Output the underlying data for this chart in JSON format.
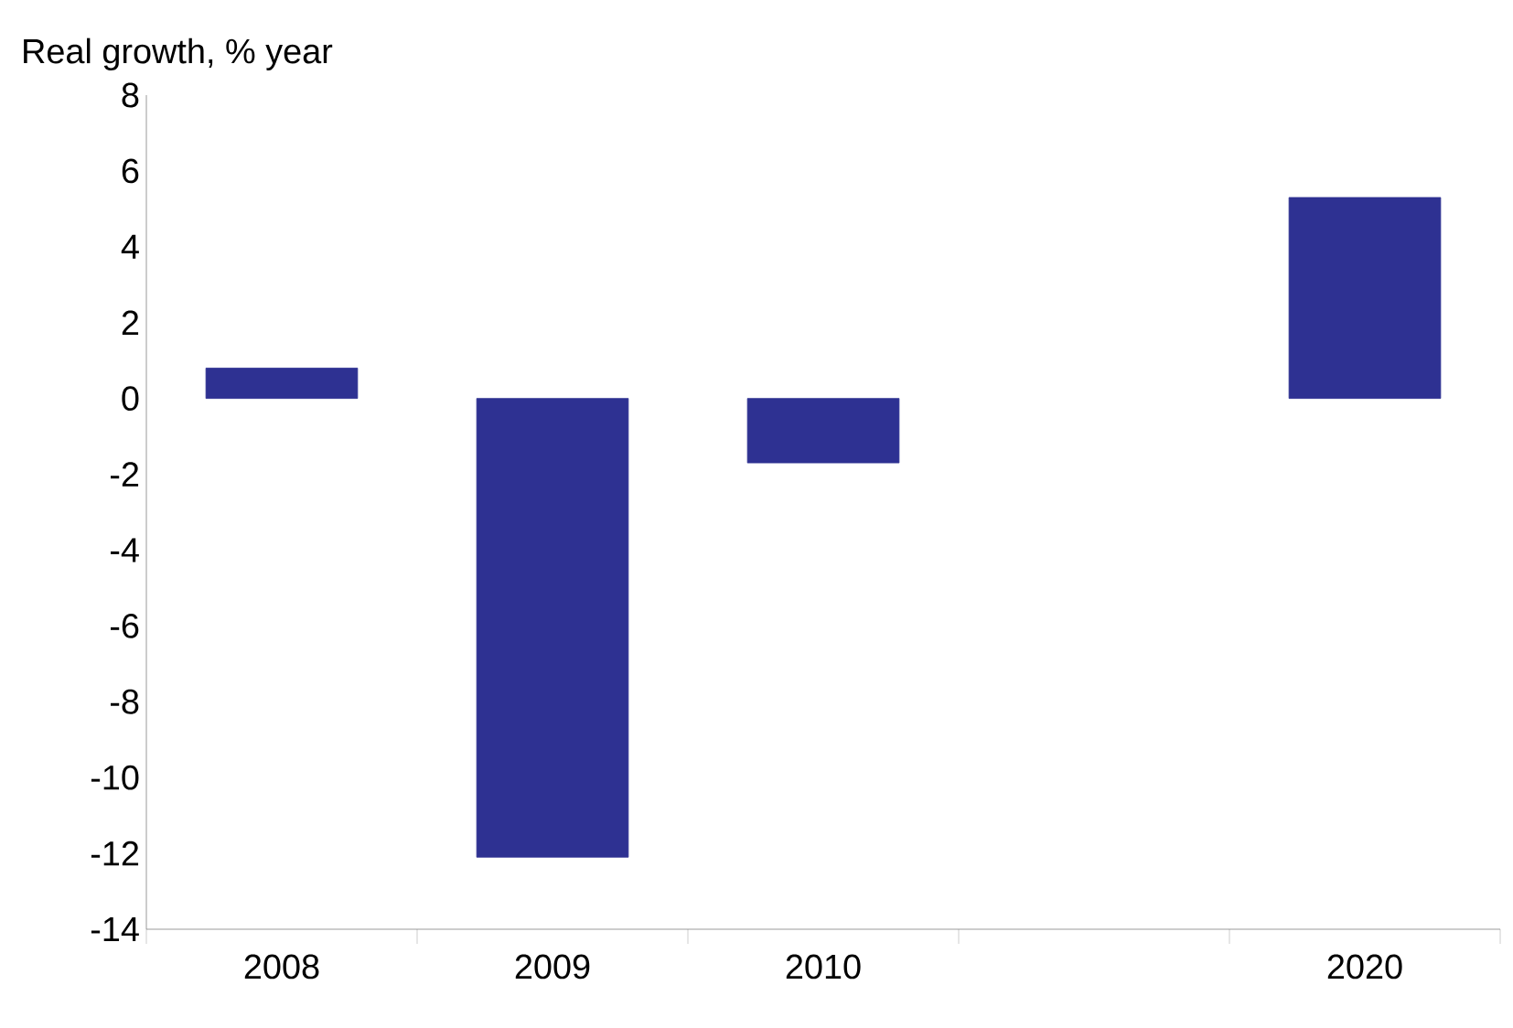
{
  "chart_data": {
    "type": "bar",
    "ylabel": "Real growth, % year",
    "categories": [
      "2008",
      "2009",
      "2010",
      null,
      "2020"
    ],
    "values": [
      0.8,
      -12.1,
      -1.7,
      null,
      5.3
    ],
    "color": "#2e3192",
    "ylim": [
      -14,
      8
    ],
    "yticks": [
      -14,
      -12,
      -10,
      -8,
      -6,
      -4,
      -2,
      0,
      2,
      4,
      6,
      8
    ]
  }
}
